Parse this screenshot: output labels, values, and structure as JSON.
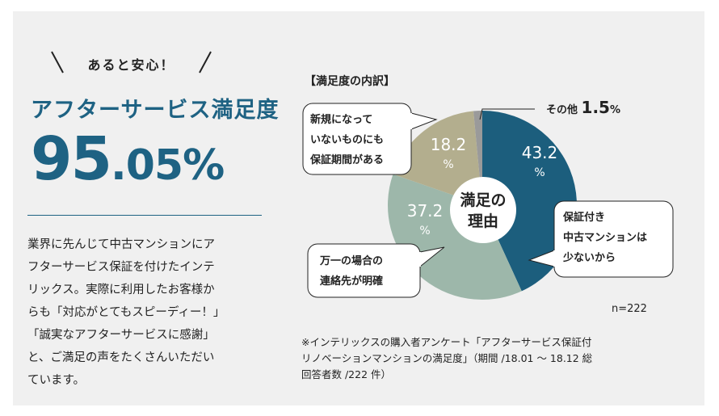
{
  "tagline": "あると安心！",
  "headline": "アフターサービス満足度",
  "big_number": {
    "integer": "95",
    "decimal": ".05%"
  },
  "description_lines": [
    "業界に先んじて中古マンションにア",
    "フターサービス保証を付けたインテ",
    "リックス。実際に利用したお客様か",
    "らも「対応がとてもスピーディー！」",
    "「誠実なアフターサービスに感謝」",
    "と、ご満足の声をたくさんいただい",
    "ています。"
  ],
  "chart_data": {
    "type": "pie",
    "title": "【満足度の内訳】",
    "center_label": [
      "満足の",
      "理由"
    ],
    "slices": [
      {
        "label": "保証付き中古マンションは少ないから",
        "value": 43.2,
        "value_text": "43.2",
        "unit": "%",
        "color": "#1c5e7d"
      },
      {
        "label": "万一の場合の連絡先が明確",
        "value": 37.2,
        "value_text": "37.2",
        "unit": "%",
        "color": "#9db7aa"
      },
      {
        "label": "新規になっていないものにも保証期間がある",
        "value": 18.2,
        "value_text": "18.2",
        "unit": "%",
        "color": "#b3ae8e"
      },
      {
        "label": "その他",
        "value": 1.5,
        "value_text": "1.5",
        "unit": "%",
        "color": "#9a9a9a"
      }
    ],
    "callouts": {
      "a": [
        "保証付き",
        "中古マンションは",
        "少ないから"
      ],
      "b": [
        "万一の場合の",
        "連絡先が明確"
      ],
      "c": [
        "新規になって",
        "いないものにも",
        "保証期間がある"
      ]
    },
    "other_label": {
      "name": "その他",
      "value": "1.5",
      "unit": "%"
    },
    "sample": "n=222"
  },
  "footnote_lines": [
    "※インテリックスの購入者アンケート「アフターサービス保証付",
    "リノベーションマンションの満足度」（期間  /18.01 ～  18.12 総",
    "回答者数 /222 件）"
  ]
}
